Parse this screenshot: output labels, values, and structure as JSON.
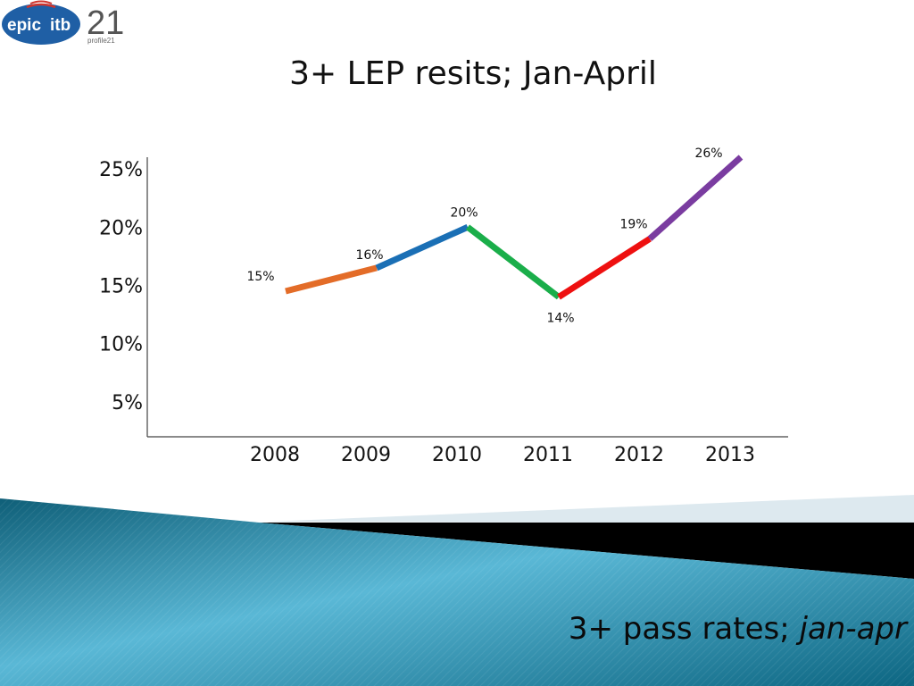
{
  "logos": {
    "epic_text": "epic",
    "itb_text": "itb",
    "profile_mark": "21",
    "profile_text": "profile21"
  },
  "title": "3+ LEP resits; Jan-April",
  "subtitle": {
    "main": "3+ pass rates; ",
    "italic": "jan-apr"
  },
  "chart_data": {
    "type": "line",
    "title": "3+ LEP resits; Jan-April",
    "xlabel": "",
    "ylabel": "",
    "categories": [
      "2008",
      "2009",
      "2010",
      "2011",
      "2012",
      "2013"
    ],
    "values": [
      14.5,
      16.5,
      20.0,
      14.0,
      19.0,
      26.0
    ],
    "data_labels": [
      "15%",
      "16%",
      "20%",
      "14%",
      "19%",
      "26%"
    ],
    "y_ticks": [
      "5%",
      "10%",
      "15%",
      "20%",
      "25%"
    ],
    "y_tick_values": [
      5,
      10,
      15,
      20,
      25
    ],
    "ylim": [
      2,
      26
    ],
    "grid": false,
    "segment_colors": [
      "#e36c28",
      "#1a6fb5",
      "#1aae4a",
      "#ee1010",
      "#7a3ca0"
    ]
  }
}
